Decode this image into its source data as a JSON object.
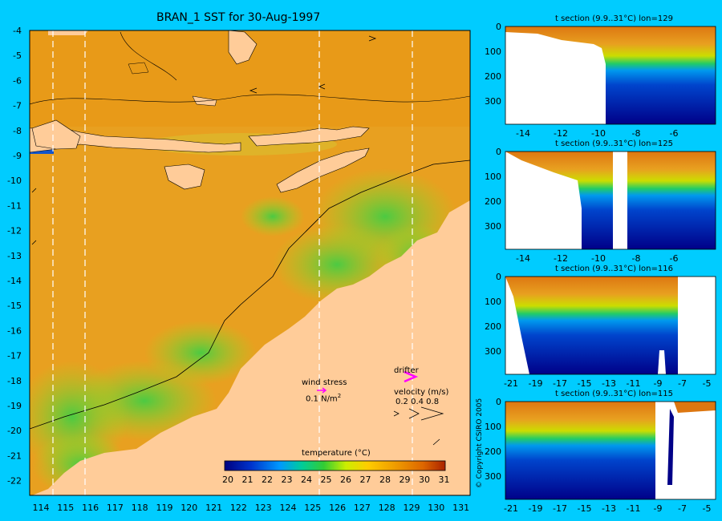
{
  "map": {
    "title": "BRAN_1 SST for 30-Aug-1997",
    "x_ticks": [
      "114",
      "115",
      "116",
      "117",
      "118",
      "119",
      "120",
      "121",
      "122",
      "123",
      "124",
      "125",
      "126",
      "127",
      "128",
      "129",
      "130",
      "131"
    ],
    "y_ticks": [
      "-4",
      "-5",
      "-6",
      "-7",
      "-8",
      "-9",
      "-10",
      "-11",
      "-12",
      "-13",
      "-14",
      "-15",
      "-16",
      "-17",
      "-18",
      "-19",
      "-20",
      "-21",
      "-22"
    ],
    "legend": {
      "wind_title": "wind stress",
      "wind_value": "0.1 N/m",
      "wind_sup": "2",
      "drifter": "drifter",
      "velocity_title": "velocity (m/s)",
      "velocity_values": "0.2 0.4 0.8"
    },
    "colorbar": {
      "title": "temperature (°C)",
      "labels": [
        "20",
        "21",
        "22",
        "23",
        "24",
        "25",
        "26",
        "27",
        "28",
        "29",
        "30",
        "31"
      ],
      "colors": [
        "#00007f",
        "#0022c0",
        "#0066ff",
        "#00aaff",
        "#00d4c0",
        "#00c864",
        "#a0e600",
        "#e6e600",
        "#ffcc00",
        "#f0a000",
        "#e07000",
        "#b82800"
      ]
    },
    "colors": {
      "land": "#ffcc99",
      "ocean": "#e8a020",
      "background": "#00ccff"
    }
  },
  "sections": [
    {
      "title": "t section (9.9..31°C) lon=129",
      "x_ticks": [
        "-14",
        "-12",
        "-10",
        "-8",
        "-6"
      ],
      "y_ticks": [
        "0",
        "100",
        "200",
        "300"
      ]
    },
    {
      "title": "t section (9.9..31°C) lon=125",
      "x_ticks": [
        "-14",
        "-12",
        "-10",
        "-8",
        "-6"
      ],
      "y_ticks": [
        "0",
        "100",
        "200",
        "300"
      ]
    },
    {
      "title": "t section (9.9..31°C) lon=116",
      "x_ticks": [
        "-21",
        "-19",
        "-17",
        "-15",
        "-13",
        "-11",
        "-9",
        "-7",
        "-5"
      ],
      "y_ticks": [
        "0",
        "100",
        "200",
        "300"
      ]
    },
    {
      "title": "t section (9.9..31°C) lon=115",
      "x_ticks": [
        "-21",
        "-19",
        "-17",
        "-15",
        "-13",
        "-11",
        "-9",
        "-7",
        "-5"
      ],
      "y_ticks": [
        "0",
        "100",
        "200",
        "300"
      ]
    }
  ],
  "copyright": "© Copyright CSIRO 2005"
}
